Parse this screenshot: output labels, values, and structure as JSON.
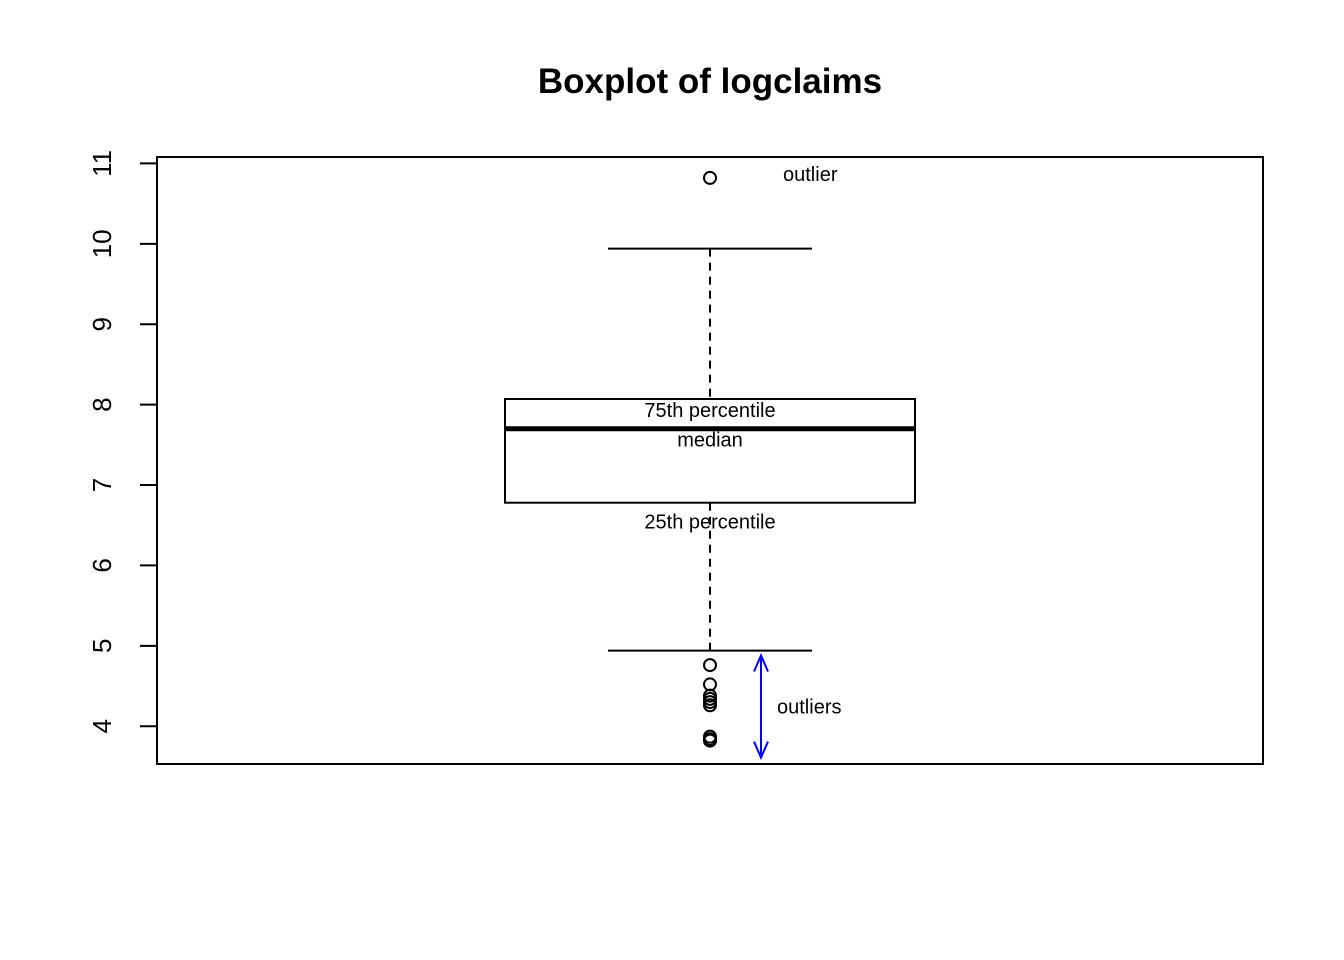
{
  "chart_data": {
    "type": "box",
    "title": "Boxplot of logclaims",
    "xlabel": "",
    "ylabel": "",
    "ylim": [
      3.53,
      11.08
    ],
    "yticks": [
      4,
      5,
      6,
      7,
      8,
      9,
      10,
      11
    ],
    "grid": false,
    "box": {
      "lower_whisker": 4.94,
      "q1": 6.78,
      "median": 7.7,
      "q3": 8.07,
      "upper_whisker": 9.94
    },
    "outliers": [
      10.82,
      4.76,
      4.52,
      4.38,
      4.34,
      4.3,
      4.26,
      3.87,
      3.84,
      3.82
    ],
    "annotations": {
      "q3_label": "75th percentile",
      "median_label": "median",
      "q1_label": "25th percentile",
      "upper_outlier_label": "outlier",
      "lower_outliers_label": "outliers"
    },
    "arrow": {
      "from": 3.61,
      "to": 4.88,
      "color": "#0000ff"
    }
  }
}
